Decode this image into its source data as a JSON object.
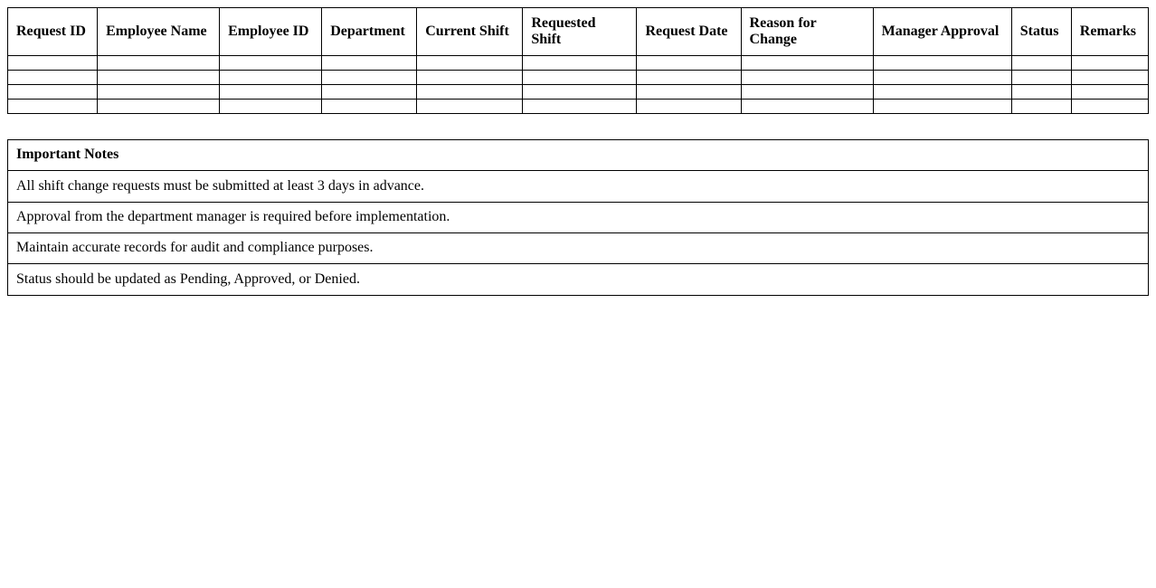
{
  "page": {
    "background_color": "#ffffff",
    "text_color": "#000000",
    "border_color": "#000000"
  },
  "request_table": {
    "headers": [
      "Request ID",
      "Employee Name",
      "Employee ID",
      "Department",
      "Current Shift",
      "Requested Shift",
      "Request Date",
      "Reason for Change",
      "Manager Approval",
      "Status",
      "Remarks"
    ],
    "empty_row_count": 4,
    "column_count": 11
  },
  "notes_table": {
    "title": "Important Notes",
    "notes": [
      "All shift change requests must be submitted at least 3 days in advance.",
      "Approval from the department manager is required before implementation.",
      "Maintain accurate records for audit and compliance purposes.",
      "Status should be updated as Pending, Approved, or Denied."
    ]
  }
}
